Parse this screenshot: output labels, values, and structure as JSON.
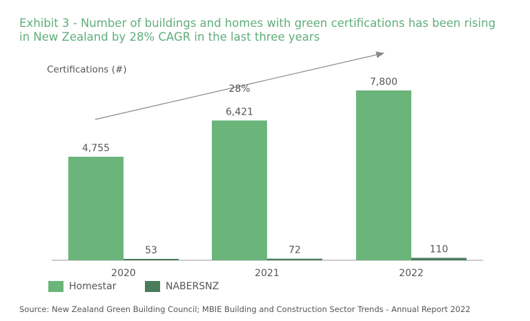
{
  "title": "Exhibit 3 - Number of buildings and homes with green certifications has been rising in New Zealand by 28% CAGR in the last three years",
  "source": "Source: New Zealand Green Building Council; MBIE Building and Construction Sector Trends - Annual Report 2022",
  "chart_data": {
    "type": "bar",
    "ylabel": "Certifications (#)",
    "categories": [
      "2020",
      "2021",
      "2022"
    ],
    "series": [
      {
        "name": "Homestar",
        "values": [
          4755,
          6421,
          7800
        ],
        "labels": [
          "4,755",
          "6,421",
          "7,800"
        ],
        "color": "#6bb57a"
      },
      {
        "name": "NABERSNZ",
        "values": [
          53,
          72,
          110
        ],
        "labels": [
          "53",
          "72",
          "110"
        ],
        "color": "#4a7c5c"
      }
    ],
    "annotation": "28%",
    "legend": "bottom-left",
    "grid": false
  }
}
